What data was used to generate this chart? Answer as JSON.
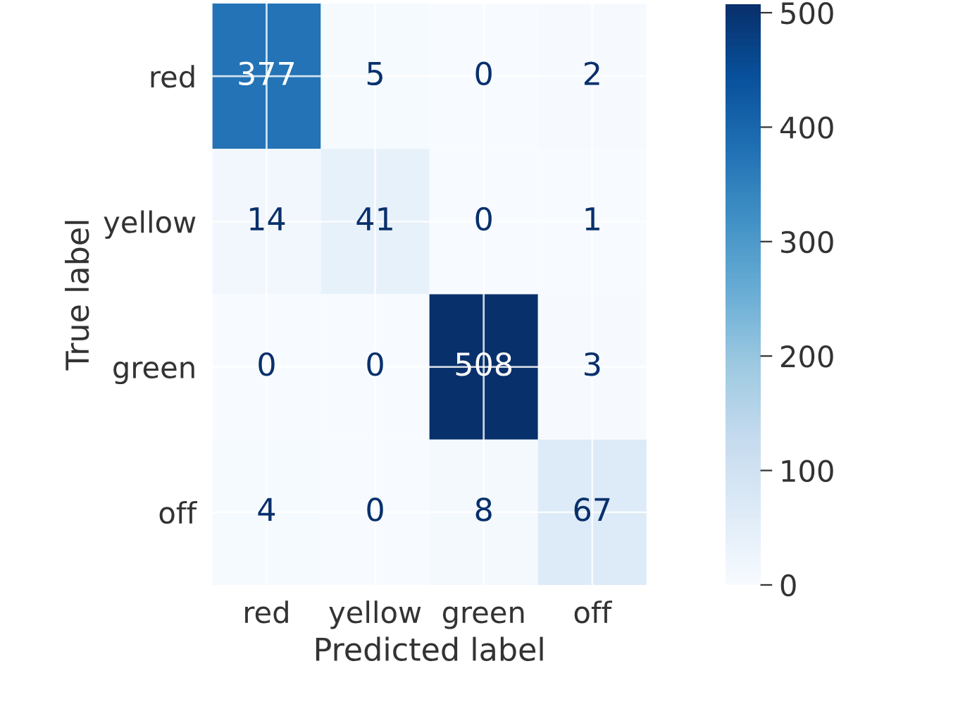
{
  "chart_data": {
    "type": "heatmap",
    "xlabel": "Predicted label",
    "ylabel": "True label",
    "categories": [
      "red",
      "yellow",
      "green",
      "off"
    ],
    "y_categories": [
      "red",
      "yellow",
      "green",
      "off"
    ],
    "cells": [
      [
        377,
        5,
        0,
        2
      ],
      [
        14,
        41,
        0,
        1
      ],
      [
        0,
        0,
        508,
        3
      ],
      [
        4,
        0,
        8,
        67
      ]
    ],
    "clim": [
      0,
      508
    ],
    "cticks": [
      0,
      100,
      200,
      300,
      400,
      500
    ],
    "data_labels": true,
    "grid": true
  }
}
